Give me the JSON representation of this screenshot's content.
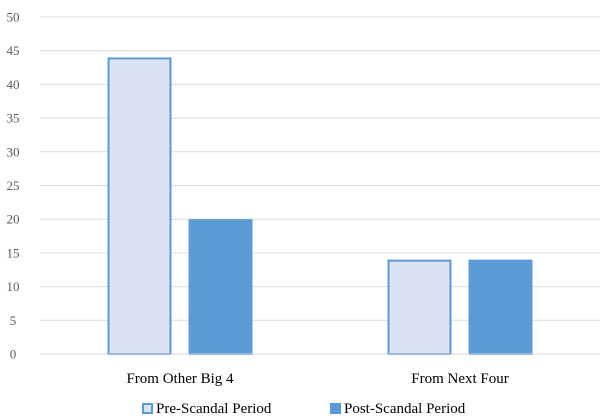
{
  "chart_data": {
    "type": "bar",
    "categories": [
      "From Other Big 4",
      "From Next Four"
    ],
    "series": [
      {
        "name": "Pre-Scandal Period",
        "values": [
          44,
          14
        ],
        "fill": "#dae3f3",
        "stroke": "#5b9bd5"
      },
      {
        "name": "Post-Scandal Period",
        "values": [
          20,
          14
        ],
        "fill": "#5b9bd5",
        "stroke": "#5b9bd5"
      }
    ],
    "ylim": [
      0,
      50
    ],
    "yticks": [
      0,
      5,
      10,
      15,
      20,
      25,
      30,
      35,
      40,
      45,
      50
    ],
    "grid": true,
    "legend": "bottom-center",
    "title": "",
    "xlabel": "",
    "ylabel": ""
  }
}
